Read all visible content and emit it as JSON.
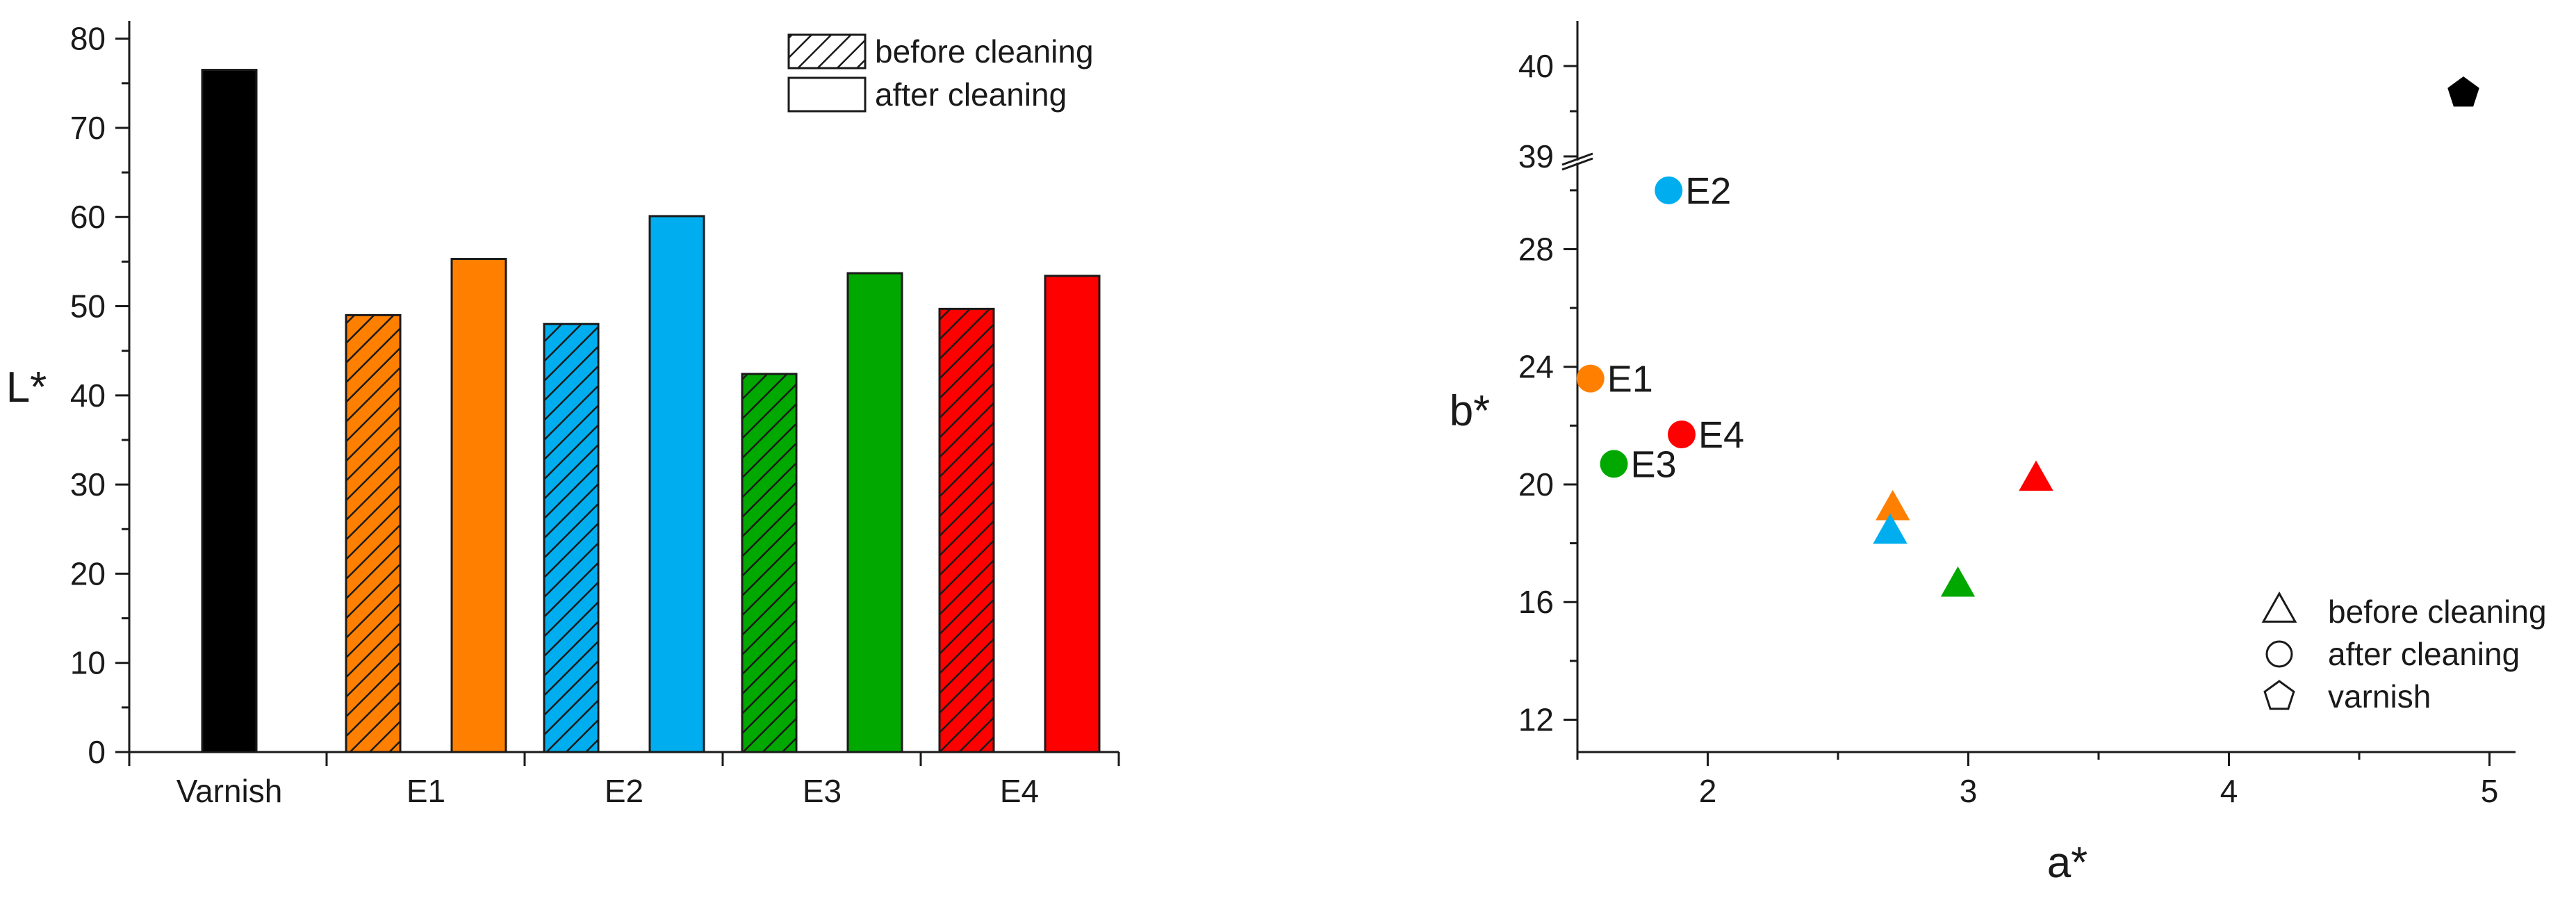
{
  "chart_data": [
    {
      "type": "bar",
      "ylabel": "L*",
      "xlabel": "",
      "ylim": [
        0,
        82
      ],
      "yticks": [
        0,
        10,
        20,
        30,
        40,
        50,
        60,
        70,
        80
      ],
      "categories": [
        "Varnish",
        "E1",
        "E2",
        "E3",
        "E4"
      ],
      "legend": {
        "placement": "top-right",
        "entries": [
          {
            "label": "before cleaning",
            "style": "hatched"
          },
          {
            "label": "after cleaning",
            "style": "solid"
          }
        ]
      },
      "bars": [
        {
          "category": "Varnish",
          "condition": "varnish",
          "value": 76.5,
          "color": "#000000",
          "hatched": false
        },
        {
          "category": "E1",
          "condition": "before cleaning",
          "value": 49.0,
          "color": "#FF8000",
          "hatched": true
        },
        {
          "category": "E1",
          "condition": "after cleaning",
          "value": 55.3,
          "color": "#FF8000",
          "hatched": false
        },
        {
          "category": "E2",
          "condition": "before cleaning",
          "value": 48.0,
          "color": "#00AEEF",
          "hatched": true
        },
        {
          "category": "E2",
          "condition": "after cleaning",
          "value": 60.1,
          "color": "#00AEEF",
          "hatched": false
        },
        {
          "category": "E3",
          "condition": "before cleaning",
          "value": 42.4,
          "color": "#00A800",
          "hatched": true
        },
        {
          "category": "E3",
          "condition": "after cleaning",
          "value": 53.7,
          "color": "#00A800",
          "hatched": false
        },
        {
          "category": "E4",
          "condition": "before cleaning",
          "value": 49.7,
          "color": "#FF0000",
          "hatched": true
        },
        {
          "category": "E4",
          "condition": "after cleaning",
          "value": 53.4,
          "color": "#FF0000",
          "hatched": false
        }
      ]
    },
    {
      "type": "scatter",
      "xlabel": "a*",
      "ylabel": "b*",
      "xlim": [
        1.5,
        5.1
      ],
      "xticks": [
        2,
        3,
        4,
        5
      ],
      "ylim": [
        10.9,
        40.5
      ],
      "yticks": [
        12,
        16,
        20,
        24,
        28,
        39,
        40
      ],
      "axis_break": {
        "lower_max": 30.8,
        "upper_min": 39,
        "upper_max": 40.5
      },
      "legend": {
        "placement": "bottom-right",
        "entries": [
          {
            "label": "before cleaning",
            "marker": "triangle"
          },
          {
            "label": "after cleaning",
            "marker": "circle"
          },
          {
            "label": "varnish",
            "marker": "pentagon"
          }
        ]
      },
      "points": [
        {
          "label": "E1",
          "condition": "after cleaning",
          "marker": "circle",
          "x": 1.55,
          "y": 23.6,
          "color": "#FF8000"
        },
        {
          "label": "E2",
          "condition": "after cleaning",
          "marker": "circle",
          "x": 1.85,
          "y": 30.0,
          "color": "#00AEEF"
        },
        {
          "label": "E3",
          "condition": "after cleaning",
          "marker": "circle",
          "x": 1.64,
          "y": 20.7,
          "color": "#00A800"
        },
        {
          "label": "E4",
          "condition": "after cleaning",
          "marker": "circle",
          "x": 1.9,
          "y": 21.7,
          "color": "#FF0000"
        },
        {
          "label": "",
          "condition": "before cleaning",
          "marker": "triangle",
          "x": 2.71,
          "y": 19.2,
          "color": "#FF8000"
        },
        {
          "label": "",
          "condition": "before cleaning",
          "marker": "triangle",
          "x": 2.7,
          "y": 18.4,
          "color": "#00AEEF"
        },
        {
          "label": "",
          "condition": "before cleaning",
          "marker": "triangle",
          "x": 2.96,
          "y": 16.6,
          "color": "#00A800"
        },
        {
          "label": "",
          "condition": "before cleaning",
          "marker": "triangle",
          "x": 3.26,
          "y": 20.2,
          "color": "#FF0000"
        },
        {
          "label": "",
          "condition": "varnish",
          "marker": "pentagon",
          "x": 4.9,
          "y": 39.7,
          "color": "#000000"
        }
      ]
    }
  ]
}
